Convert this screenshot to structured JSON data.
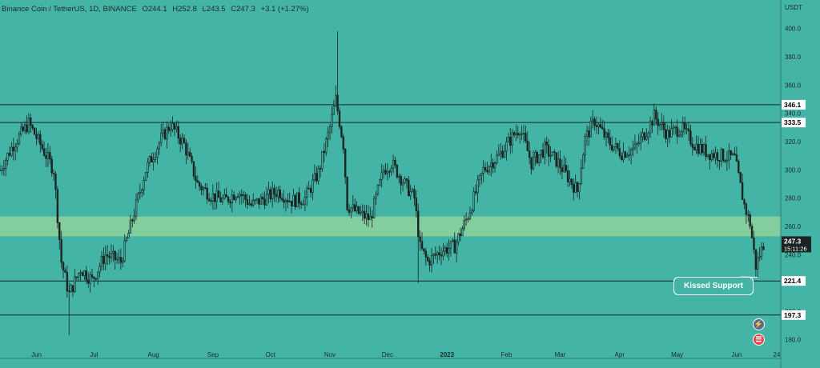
{
  "header": {
    "symbol": "Binance Coin / TetherUS, 1D, BINANCE",
    "open": "O244.1",
    "high": "H252.8",
    "low": "L243.5",
    "close": "C247.3",
    "change": "+3.1 (+1.27%)"
  },
  "annotation": {
    "text": "Kissed Support"
  },
  "icons": {
    "flash": "lightning-icon",
    "flag": "us-flag-icon"
  },
  "colors": {
    "background": "#44b4a6",
    "zone": "#8fd19a",
    "candle": "#1a2422",
    "line": "#1a2422",
    "label_bg": "#ffffff",
    "label_text": "#000000",
    "price_tag_bg": "#1a2422",
    "price_tag_text": "#ffffff"
  },
  "chart_data": {
    "type": "candlestick",
    "title": "Binance Coin / TetherUS, 1D, BINANCE",
    "y_unit": "USDT",
    "ylim": [
      170,
      410
    ],
    "y_ticks": [
      180.0,
      200.0,
      220.0,
      240.0,
      260.0,
      280.0,
      300.0,
      320.0,
      340.0,
      360.0,
      380.0,
      400.0
    ],
    "x_ticks": [
      "Jun",
      "Jul",
      "Aug",
      "Sep",
      "Oct",
      "Nov",
      "Dec",
      "2023",
      "Feb",
      "Mar",
      "Apr",
      "May",
      "Jun",
      "24"
    ],
    "x_range": [
      "2022-05-13",
      "2023-06-24"
    ],
    "levels": [
      {
        "value": 346.1,
        "label": "346.1"
      },
      {
        "value": 333.5,
        "label": "333.5"
      },
      {
        "value": 221.4,
        "label": "221.4"
      },
      {
        "value": 197.3,
        "label": "197.3"
      }
    ],
    "zone": [
      253,
      267
    ],
    "last_price": {
      "value": 247.3,
      "label": "247.3",
      "countdown": "15:11:26"
    },
    "price_path": [
      [
        "2022-05-13",
        300
      ],
      [
        "2022-05-20",
        318
      ],
      [
        "2022-05-28",
        333
      ],
      [
        "2022-06-03",
        318
      ],
      [
        "2022-06-10",
        300
      ],
      [
        "2022-06-14",
        235
      ],
      [
        "2022-06-18",
        212
      ],
      [
        "2022-06-24",
        230
      ],
      [
        "2022-06-30",
        222
      ],
      [
        "2022-07-07",
        240
      ],
      [
        "2022-07-15",
        235
      ],
      [
        "2022-07-22",
        270
      ],
      [
        "2022-07-28",
        300
      ],
      [
        "2022-08-05",
        322
      ],
      [
        "2022-08-10",
        332
      ],
      [
        "2022-08-17",
        318
      ],
      [
        "2022-08-24",
        290
      ],
      [
        "2022-08-31",
        282
      ],
      [
        "2022-09-07",
        278
      ],
      [
        "2022-09-14",
        285
      ],
      [
        "2022-09-21",
        275
      ],
      [
        "2022-09-28",
        280
      ],
      [
        "2022-10-05",
        285
      ],
      [
        "2022-10-12",
        278
      ],
      [
        "2022-10-19",
        280
      ],
      [
        "2022-10-26",
        298
      ],
      [
        "2022-11-01",
        330
      ],
      [
        "2022-11-04",
        350
      ],
      [
        "2022-11-08",
        318
      ],
      [
        "2022-11-10",
        275
      ],
      [
        "2022-11-15",
        270
      ],
      [
        "2022-11-22",
        265
      ],
      [
        "2022-11-29",
        300
      ],
      [
        "2022-12-03",
        305
      ],
      [
        "2022-12-10",
        290
      ],
      [
        "2022-12-15",
        280
      ],
      [
        "2022-12-18",
        245
      ],
      [
        "2022-12-22",
        235
      ],
      [
        "2022-12-29",
        243
      ],
      [
        "2023-01-05",
        246
      ],
      [
        "2023-01-12",
        268
      ],
      [
        "2023-01-20",
        300
      ],
      [
        "2023-01-28",
        310
      ],
      [
        "2023-02-05",
        325
      ],
      [
        "2023-02-08",
        330
      ],
      [
        "2023-02-14",
        305
      ],
      [
        "2023-02-21",
        315
      ],
      [
        "2023-02-28",
        305
      ],
      [
        "2023-03-05",
        295
      ],
      [
        "2023-03-10",
        285
      ],
      [
        "2023-03-14",
        322
      ],
      [
        "2023-03-19",
        335
      ],
      [
        "2023-03-26",
        320
      ],
      [
        "2023-04-02",
        312
      ],
      [
        "2023-04-09",
        315
      ],
      [
        "2023-04-16",
        330
      ],
      [
        "2023-04-19",
        338
      ],
      [
        "2023-04-26",
        325
      ],
      [
        "2023-05-03",
        330
      ],
      [
        "2023-05-10",
        318
      ],
      [
        "2023-05-17",
        312
      ],
      [
        "2023-05-24",
        310
      ],
      [
        "2023-05-31",
        308
      ],
      [
        "2023-06-05",
        275
      ],
      [
        "2023-06-08",
        262
      ],
      [
        "2023-06-11",
        232
      ],
      [
        "2023-06-13",
        240
      ],
      [
        "2023-06-15",
        247.3
      ]
    ],
    "notable_extremes": [
      [
        "2022-06-18",
        183
      ],
      [
        "2022-11-05",
        398
      ],
      [
        "2022-12-17",
        220
      ],
      [
        "2023-06-12",
        224
      ]
    ]
  }
}
